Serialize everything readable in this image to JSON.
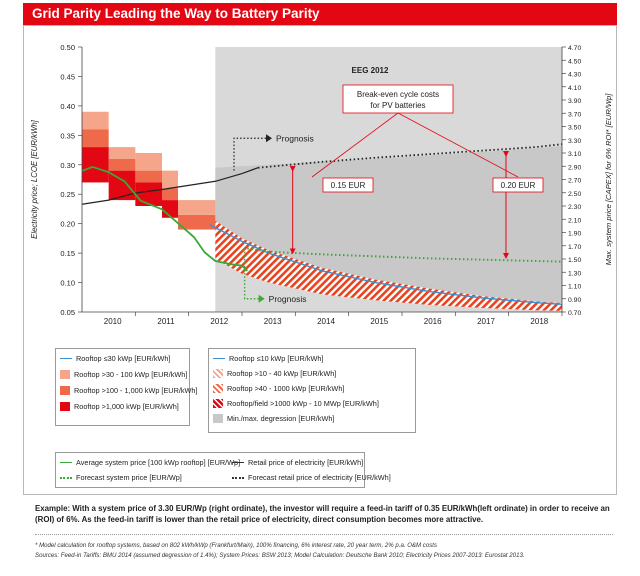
{
  "header": {
    "title": "Grid Parity Leading the Way to Battery Parity"
  },
  "chart_data": {
    "type": "line",
    "title": "Grid Parity Leading the Way to Battery Parity",
    "x_ticks": [
      "2010",
      "2011",
      "2012",
      "2013",
      "2014",
      "2015",
      "2016",
      "2017",
      "2018"
    ],
    "ylabel_left": "Electricity price; LCOE [EUR/kWh]",
    "ylabel_right": "Max. system price [CAPEX] for 6% ROI* [EUR/Wp]",
    "ylim_left": [
      0.05,
      0.5
    ],
    "ylim_right": [
      0.7,
      4.7
    ],
    "yticks_left": [
      "0.50",
      "0.45",
      "0.40",
      "0.35",
      "0.30",
      "0.25",
      "0.20",
      "0.15",
      "0.10",
      "0.05"
    ],
    "yticks_left_values": [
      0.5,
      0.45,
      0.4,
      0.35,
      0.3,
      0.25,
      0.2,
      0.15,
      0.1,
      0.05
    ],
    "yticks_right": [
      "4.70",
      "4.50",
      "4.30",
      "4.10",
      "3.90",
      "3.70",
      "3.50",
      "3.30",
      "3.10",
      "2.90",
      "2.70",
      "2.50",
      "2.30",
      "2.10",
      "1.90",
      "1.70",
      "1.50",
      "1.30",
      "1.10",
      "0.90",
      "0.70"
    ],
    "yticks_right_values": [
      4.7,
      4.5,
      4.3,
      4.1,
      3.9,
      3.7,
      3.5,
      3.3,
      3.1,
      2.9,
      2.7,
      2.5,
      2.3,
      2.1,
      1.9,
      1.7,
      1.5,
      1.3,
      1.1,
      0.9,
      0.7
    ],
    "annotations": {
      "eeg": "EEG 2012",
      "breakeven": "Break-even cycle costs for PV batteries",
      "prognosis_top": "Prognosis",
      "prognosis_bottom": "Prognosis",
      "gap1": "0.15 EUR",
      "gap2": "0.20 EUR"
    },
    "retail_price": {
      "x": [
        2009.5,
        2010.0,
        2010.5,
        2011.0,
        2011.5,
        2012.0,
        2012.5,
        2012.8
      ],
      "y": [
        0.233,
        0.24,
        0.252,
        0.258,
        0.265,
        0.272,
        0.285,
        0.295
      ]
    },
    "retail_forecast": {
      "x": [
        2012.8,
        2014,
        2015,
        2016,
        2017,
        2018,
        2018.5
      ],
      "y": [
        0.295,
        0.305,
        0.312,
        0.318,
        0.324,
        0.33,
        0.335
      ]
    },
    "system_price": {
      "x": [
        2009.5,
        2009.7,
        2010.0,
        2010.3,
        2010.6,
        2011.0,
        2011.3,
        2011.6,
        2011.8,
        2012.0,
        2012.3,
        2012.5,
        2012.6
      ],
      "y": [
        2.83,
        2.89,
        2.81,
        2.67,
        2.38,
        2.25,
        2.04,
        1.83,
        1.6,
        1.47,
        1.42,
        1.4,
        1.32
      ]
    },
    "system_forecast": {
      "x": [
        2012.6,
        2013,
        2014,
        2015,
        2016,
        2017,
        2018,
        2018.5
      ],
      "y": [
        1.66,
        1.61,
        1.57,
        1.54,
        1.51,
        1.49,
        1.47,
        1.46
      ]
    },
    "rooftop_le10": {
      "x": [
        2011.9,
        2012.5,
        2013,
        2014,
        2015,
        2016,
        2017,
        2018,
        2018.5
      ],
      "y": [
        0.198,
        0.17,
        0.15,
        0.12,
        0.1,
        0.085,
        0.074,
        0.066,
        0.063
      ]
    },
    "degression_band_lower": {
      "x": [
        2012.0,
        2013,
        2014,
        2015,
        2016,
        2017,
        2018,
        2018.5
      ],
      "y": [
        0.2,
        0.145,
        0.115,
        0.095,
        0.08,
        0.07,
        0.063,
        0.06
      ]
    },
    "degression_band_upper": {
      "x": [
        2012.0,
        2013,
        2014,
        2015,
        2016,
        2017,
        2018,
        2018.5
      ],
      "y": [
        0.295,
        0.3,
        0.305,
        0.31,
        0.316,
        0.322,
        0.328,
        0.332
      ]
    },
    "tariff_steps": [
      {
        "name": "Rooftop >30 - 100 kWp",
        "color": "#f4a58a",
        "steps": [
          [
            2009.5,
            2010.0,
            0.39,
            0.36
          ],
          [
            2010.0,
            2010.5,
            0.33,
            0.31
          ],
          [
            2010.5,
            2011.0,
            0.32,
            0.29
          ],
          [
            2011.0,
            2011.3,
            0.29,
            0.26
          ]
        ]
      },
      {
        "name": "Rooftop >100 - 1,000 kWp",
        "color": "#ee6a4a",
        "steps": [
          [
            2009.5,
            2010.0,
            0.36,
            0.33
          ],
          [
            2010.0,
            2010.5,
            0.31,
            0.29
          ],
          [
            2010.5,
            2011.0,
            0.29,
            0.27
          ],
          [
            2011.0,
            2011.3,
            0.26,
            0.24
          ]
        ]
      },
      {
        "name": "Rooftop >1,000 kWp",
        "color": "#e30613",
        "steps": [
          [
            2009.5,
            2010.0,
            0.33,
            0.27
          ],
          [
            2010.0,
            2010.5,
            0.29,
            0.24
          ],
          [
            2010.5,
            2011.0,
            0.27,
            0.23
          ],
          [
            2011.0,
            2011.3,
            0.24,
            0.21
          ]
        ]
      }
    ]
  },
  "legend": {
    "group1": {
      "item1": "Rooftop ≤30 kWp [EUR/kWh]",
      "item2": "Rooftop >30 - 100 kWp [EUR/kWh]",
      "item3": "Rooftop >100 - 1,000 kWp [EUR/kWh]",
      "item4": "Rooftop >1,000 kWp [EUR/kWh]"
    },
    "group2": {
      "item1": "Rooftop ≤10 kWp [EUR/kWh]",
      "item2": "Rooftop >10 - 40 kWp [EUR/kWh]",
      "item3": "Rooftop >40 - 1000 kWp [EUR/kWh]",
      "item4": "Rooftop/field >1000 kWp - 10 MWp [EUR/kWh]",
      "item5": "Min./max. degression [EUR/kWh]"
    },
    "group3": {
      "item1": "Average system price [100 kWp rooftop] [EUR/Wp]",
      "item2": "Forecast system price [EUR/Wp]",
      "item3": "Retail price of electricity [EUR/kWh]",
      "item4": "Forecast retail price of electricity [EUR/kWh]"
    }
  },
  "footer": {
    "example": "Example: With a system price of 3.30 EUR/Wp (right ordinate), the investor will require a feed-in tariff of 0.35 EUR/kWh(left ordinate) in order to receive an (ROI) of 6%. As the feed-in tariff is lower than the retail price of electricity, direct consumption becomes more attractive.",
    "note1": "* Model calculation for rooftop systems, based on 802 kWh/kWp (Frankfurt/Main), 100% financing, 6% interest rate, 20 year term, 2% p.a. O&M costs",
    "note2": "Sources: Feed-in Tariffs: BMU 2014 (assumed degression of 1.4%); System Prices: BSW 2013; Model Calculation: Deutsche Bank 2010; Electricity Prices 2007-2013: Eurostat 2013."
  },
  "colors": {
    "brand_red": "#e30613",
    "system_green": "#3aa935",
    "rooftop_blue": "#3d8fd1",
    "eeg_gray": "#d9d9d9",
    "band_gray": "#c8c8c8"
  }
}
